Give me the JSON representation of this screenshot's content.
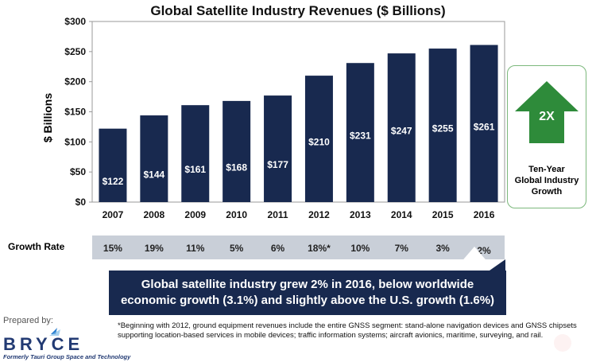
{
  "chart_data": {
    "type": "bar",
    "title": "Global Satellite Industry Revenues ($ Billions)",
    "ylabel": "$ Billions",
    "xlabel": "",
    "categories": [
      "2007",
      "2008",
      "2009",
      "2010",
      "2011",
      "2012",
      "2013",
      "2014",
      "2015",
      "2016"
    ],
    "values": [
      122,
      144,
      161,
      168,
      177,
      210,
      231,
      247,
      255,
      261
    ],
    "data_labels": [
      "$122",
      "$144",
      "$161",
      "$168",
      "$177",
      "$210",
      "$231",
      "$247",
      "$255",
      "$261"
    ],
    "ylim": [
      0,
      300
    ],
    "yticks": [
      0,
      50,
      100,
      150,
      200,
      250,
      300
    ],
    "ytick_labels": [
      "$0",
      "$50",
      "$100",
      "$150",
      "$200",
      "$250",
      "$300"
    ],
    "bar_color": "#18294f",
    "grid": false
  },
  "growth": {
    "label": "Growth Rate",
    "values": [
      "15%",
      "19%",
      "11%",
      "5%",
      "6%",
      "18%*",
      "10%",
      "7%",
      "3%",
      "2%"
    ]
  },
  "banner": {
    "line1": "Global satellite industry grew 2% in 2016, below worldwide",
    "line2": "economic growth (3.1%) and slightly above the U.S. growth (1.6%)"
  },
  "sidebox": {
    "arrow_text": "2X",
    "line1": "Ten-Year",
    "line2": "Global Industry",
    "line3": "Growth",
    "accent": "#2e8b3a"
  },
  "footer": {
    "prepared": "Prepared by:",
    "logo_text": "BRYCE",
    "logo_sub": "Formerly Tauri Group Space and Technology",
    "footnote": "*Beginning with 2012, ground equipment revenues include the entire GNSS segment: stand-alone navigation devices and GNSS chipsets supporting location-based services in mobile devices; traffic information systems; aircraft avionics, maritime, surveying, and rail."
  }
}
